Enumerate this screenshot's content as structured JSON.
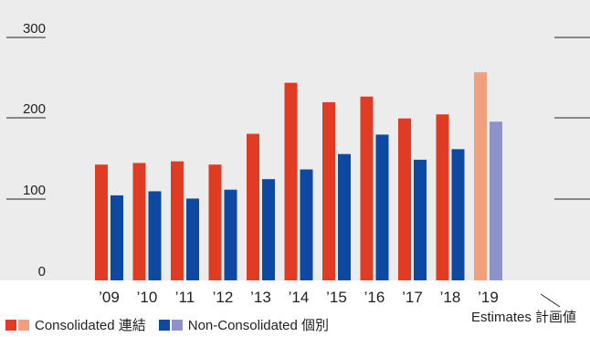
{
  "chart_data": {
    "type": "bar",
    "categories": [
      "’09",
      "’10",
      "’11",
      "’12",
      "’13",
      "’14",
      "’15",
      "’16",
      "’17",
      "’18",
      "’19"
    ],
    "series": [
      {
        "name": "Consolidated 連結",
        "values": [
          143,
          145,
          147,
          143,
          181,
          244,
          220,
          227,
          200,
          205,
          257
        ],
        "color": "#e03c24",
        "estimate_color": "#f0a07c"
      },
      {
        "name": "Non-Consolidated 個別",
        "values": [
          105,
          110,
          101,
          112,
          125,
          137,
          156,
          180,
          149,
          162,
          196
        ],
        "color": "#0d49a1",
        "estimate_color": "#8c93c8"
      }
    ],
    "estimate_categories": [
      "’19"
    ],
    "y_ticks": [
      "0",
      "100",
      "200",
      "300"
    ],
    "ylim": [
      0,
      300
    ],
    "grid": false,
    "legend": "bottom-left"
  },
  "legend": {
    "consolidated": "Consolidated 連結",
    "non_consolidated": "Non-Consolidated 個別"
  },
  "estimates_label": "Estimates 計画値"
}
